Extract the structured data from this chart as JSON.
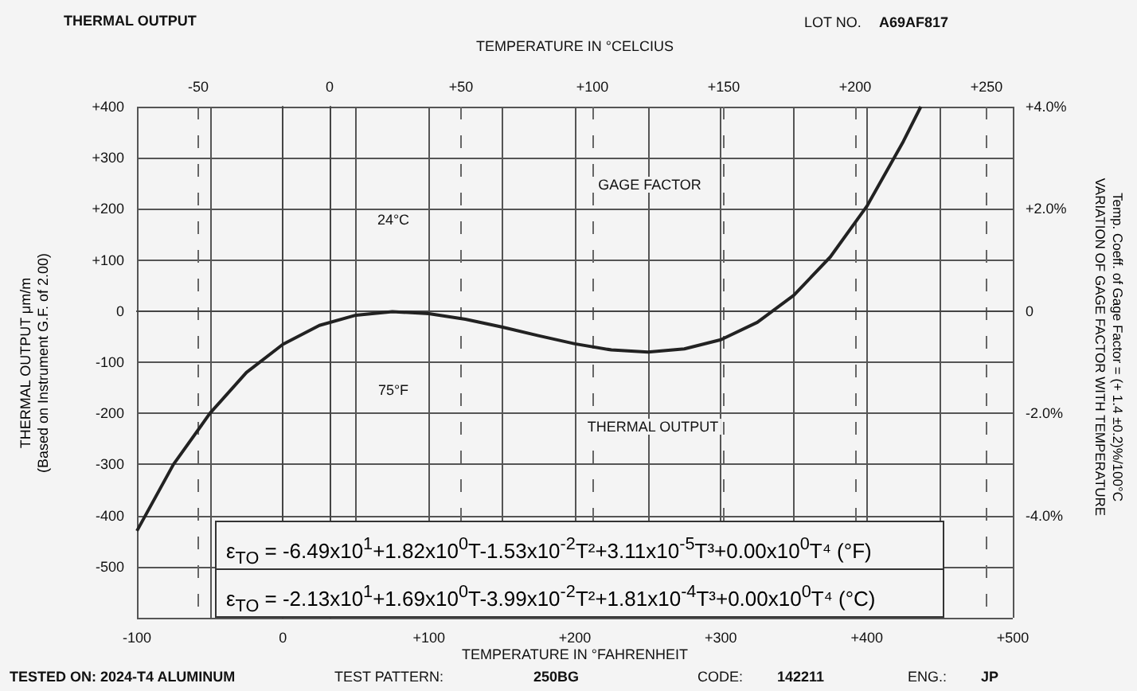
{
  "chart_data": {
    "type": "line",
    "title": "THERMAL OUTPUT",
    "xlabel": "TEMPERATURE IN °FAHRENHEIT",
    "x2label": "TEMPERATURE IN °CELCIUS",
    "ylabel": "THERMAL OUTPUT μm/m\n(Based on Instrument G.F. of 2.00)",
    "y2label": "Temp. Coeff. of Gage Factor = (+ 1.4 ±0.2)%/100°C\nVARIATION OF GAGE FACTOR WITH TEMPERATURE",
    "series": [
      {
        "color": "#222222",
        "x": [
          -100,
          -75,
          -50,
          -25,
          0,
          25,
          50,
          75,
          100,
          125,
          150,
          175,
          200,
          225,
          250,
          275,
          300,
          325,
          350,
          375,
          400,
          425,
          437
        ],
        "values": [
          -430,
          -300,
          -200,
          -120,
          -65,
          -28,
          -8,
          -1,
          -5,
          -16,
          -31,
          -48,
          -64,
          -76,
          -80,
          -74,
          -56,
          -22,
          31,
          106,
          205,
          332,
          400
        ]
      }
    ],
    "xlim": [
      -100,
      500
    ],
    "xticks": [
      -100,
      {
        "value": -50,
        "label": null
      },
      0,
      {
        "value": 50,
        "label": null
      },
      {
        "value": 100,
        "label": "+100"
      },
      {
        "value": 150,
        "label": null
      },
      {
        "value": 200,
        "label": "+200"
      },
      {
        "value": 250,
        "label": null
      },
      {
        "value": 300,
        "label": "+300"
      },
      {
        "value": 350,
        "label": null
      },
      {
        "value": 400,
        "label": "+400"
      },
      {
        "value": 450,
        "label": null
      },
      {
        "value": 500,
        "label": "+500"
      }
    ],
    "x2lim": [
      -73.3,
      260
    ],
    "x2ticks": [
      -50,
      0,
      {
        "value": 50,
        "label": "+50"
      },
      {
        "value": 100,
        "label": "+100"
      },
      {
        "value": 150,
        "label": "+150"
      },
      {
        "value": 200,
        "label": "+200"
      },
      {
        "value": 250,
        "label": "+250"
      }
    ],
    "ylim": [
      -600,
      400
    ],
    "yticks": [
      {
        "value": -600,
        "label": null
      },
      -500,
      -400,
      -300,
      -200,
      -100,
      0,
      {
        "value": 100,
        "label": "+100"
      },
      {
        "value": 200,
        "label": "+200"
      },
      {
        "value": 300,
        "label": "+300"
      },
      {
        "value": 400,
        "label": "+400"
      }
    ],
    "y2lim": [
      -6,
      4
    ],
    "y2ticks": [
      {
        "value": -4,
        "label": "-4.0%"
      },
      {
        "value": -2,
        "label": "-2.0%"
      },
      0,
      {
        "value": 2,
        "label": "+2.0%"
      },
      {
        "value": 4,
        "label": "+4.0%"
      }
    ],
    "grid": true,
    "annotations": [
      "24°C",
      "75°F",
      "GAGE FACTOR",
      "THERMAL OUTPUT",
      "LOT NO.",
      "A69AF817",
      "TESTED ON: 2024-T4 ALUMINUM",
      "TEST PATTERN:",
      "250BG",
      "CODE:",
      "142211",
      "ENG.:",
      "JP",
      "ε$_{TO}$ = -6.49x10$^{1}$+1.82x10$^{0}$T-1.53x10$^{-2}$T²+3.11x10$^{-5}$T³+0.00x10$^{0}$T⁴ (°F)",
      "ε$_{TO}$ = -2.13x10$^{1}$+1.69x10$^{0}$T-3.99x10$^{-2}$T²+1.81x10$^{-4}$T³+0.00x10$^{0}$T⁴ (°C)"
    ]
  }
}
